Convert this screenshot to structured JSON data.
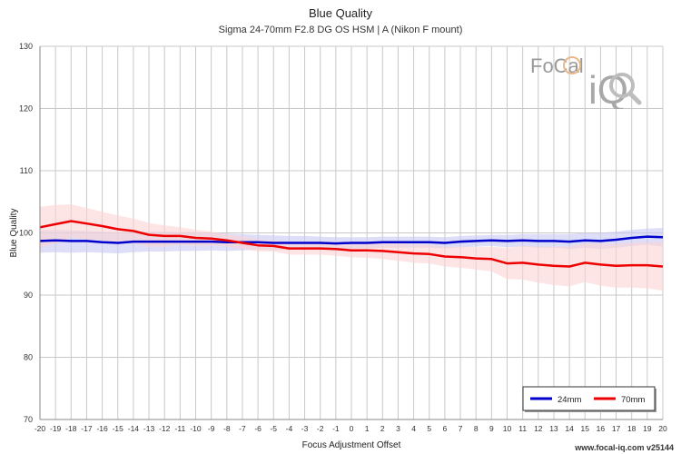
{
  "chart_data": {
    "type": "line",
    "title": "Blue Quality",
    "subtitle": "Sigma 24-70mm F2.8 DG OS HSM | A (Nikon F mount)",
    "xlabel": "Focus Adjustment Offset",
    "ylabel": "Blue Quality",
    "xlim": [
      -20,
      20
    ],
    "ylim": [
      70,
      130
    ],
    "x_ticks": [
      -20,
      -19,
      -18,
      -17,
      -16,
      -15,
      -14,
      -13,
      -12,
      -11,
      -10,
      -9,
      -8,
      -7,
      -6,
      -5,
      -4,
      -3,
      -2,
      -1,
      0,
      1,
      2,
      3,
      4,
      5,
      6,
      7,
      8,
      9,
      10,
      11,
      12,
      13,
      14,
      15,
      16,
      17,
      18,
      19,
      20
    ],
    "y_ticks": [
      70,
      80,
      90,
      100,
      110,
      120,
      130
    ],
    "grid": true,
    "legend_position": "bottom-right",
    "x": [
      -20,
      -19,
      -18,
      -17,
      -16,
      -15,
      -14,
      -13,
      -12,
      -11,
      -10,
      -9,
      -8,
      -7,
      -6,
      -5,
      -4,
      -3,
      -2,
      -1,
      0,
      1,
      2,
      3,
      4,
      5,
      6,
      7,
      8,
      9,
      10,
      11,
      12,
      13,
      14,
      15,
      16,
      17,
      18,
      19,
      20
    ],
    "series": [
      {
        "name": "24mm",
        "color": "#0000cc",
        "band_color": "#c8c8f4",
        "values": [
          98.7,
          98.8,
          98.7,
          98.7,
          98.5,
          98.4,
          98.6,
          98.6,
          98.6,
          98.6,
          98.6,
          98.6,
          98.5,
          98.5,
          98.5,
          98.4,
          98.4,
          98.4,
          98.4,
          98.3,
          98.4,
          98.4,
          98.5,
          98.5,
          98.5,
          98.5,
          98.4,
          98.6,
          98.7,
          98.8,
          98.7,
          98.8,
          98.7,
          98.7,
          98.6,
          98.8,
          98.7,
          98.9,
          99.2,
          99.4,
          99.3
        ],
        "band_upper": [
          100.4,
          100.5,
          100.4,
          100.3,
          100.2,
          100.1,
          100.2,
          100.2,
          100.2,
          100.1,
          100.1,
          100.0,
          99.9,
          99.8,
          99.7,
          99.6,
          99.5,
          99.5,
          99.4,
          99.3,
          99.3,
          99.3,
          99.4,
          99.4,
          99.4,
          99.4,
          99.3,
          99.5,
          99.6,
          99.7,
          99.7,
          99.8,
          99.8,
          99.8,
          99.8,
          100.0,
          100.0,
          100.2,
          100.5,
          100.7,
          100.8
        ],
        "band_lower": [
          96.8,
          96.9,
          96.8,
          96.9,
          96.8,
          96.7,
          96.9,
          97.0,
          97.0,
          97.1,
          97.1,
          97.2,
          97.1,
          97.2,
          97.3,
          97.2,
          97.3,
          97.3,
          97.4,
          97.3,
          97.5,
          97.5,
          97.6,
          97.6,
          97.6,
          97.6,
          97.5,
          97.7,
          97.8,
          97.9,
          97.7,
          97.8,
          97.6,
          97.6,
          97.4,
          97.6,
          97.4,
          97.6,
          97.9,
          98.1,
          97.8
        ]
      },
      {
        "name": "70mm",
        "color": "#ee0000",
        "band_color": "#fbd3d3",
        "values": [
          100.9,
          101.4,
          101.9,
          101.5,
          101.1,
          100.6,
          100.3,
          99.7,
          99.5,
          99.5,
          99.2,
          99.1,
          98.8,
          98.4,
          98.0,
          97.9,
          97.5,
          97.5,
          97.5,
          97.4,
          97.2,
          97.2,
          97.1,
          96.9,
          96.7,
          96.6,
          96.2,
          96.1,
          95.9,
          95.8,
          95.1,
          95.2,
          94.9,
          94.7,
          94.6,
          95.2,
          94.9,
          94.7,
          94.8,
          94.8,
          94.6
        ],
        "band_upper": [
          104.2,
          104.5,
          104.6,
          104.0,
          103.4,
          102.8,
          102.3,
          101.6,
          101.2,
          100.9,
          100.5,
          100.2,
          99.8,
          99.4,
          99.0,
          98.8,
          98.5,
          98.5,
          98.5,
          98.5,
          98.3,
          98.4,
          98.4,
          98.3,
          98.2,
          98.1,
          97.8,
          97.8,
          97.7,
          97.8,
          97.6,
          97.9,
          97.8,
          97.8,
          97.8,
          98.3,
          98.3,
          98.2,
          98.4,
          98.5,
          98.5
        ],
        "band_lower": [
          97.6,
          98.3,
          99.2,
          99.0,
          98.8,
          98.4,
          98.3,
          97.8,
          97.8,
          98.1,
          97.9,
          98.0,
          97.8,
          97.4,
          97.0,
          97.0,
          96.5,
          96.5,
          96.5,
          96.3,
          96.1,
          96.0,
          95.8,
          95.5,
          95.2,
          95.1,
          94.6,
          94.4,
          94.1,
          93.8,
          92.6,
          92.5,
          92.0,
          91.6,
          91.4,
          92.1,
          91.5,
          91.2,
          91.2,
          91.1,
          90.7
        ]
      }
    ]
  },
  "watermark": {
    "brand_text": "FoCal",
    "product_text": "iQ"
  },
  "footer": "www.focal-iq.com  v25144"
}
